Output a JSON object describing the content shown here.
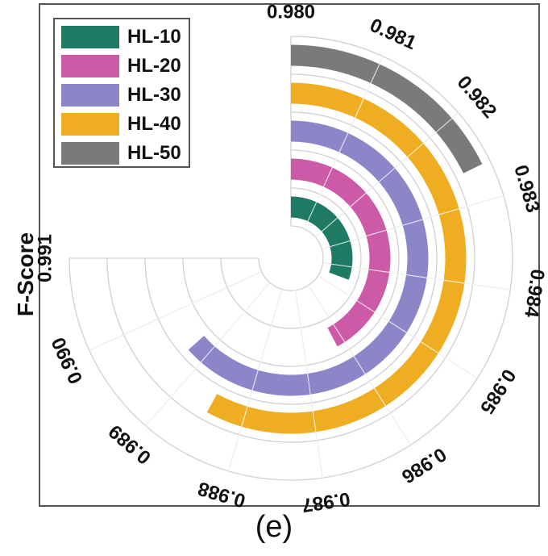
{
  "chart_data": {
    "type": "radial-bar",
    "title": "",
    "ylabel": "F-Score",
    "caption": "(e)",
    "axis_range": [
      0.98,
      0.991
    ],
    "tick_labels": [
      "0.980",
      "0.981",
      "0.982",
      "0.983",
      "0.984",
      "0.985",
      "0.986",
      "0.987",
      "0.988",
      "0.989",
      "0.990",
      "0.991"
    ],
    "legend_position": "top-left",
    "categories": [
      "HL-10",
      "HL-20",
      "HL-30",
      "HL-40",
      "HL-50"
    ],
    "series": [
      {
        "name": "HL-10",
        "value": 0.9845,
        "color": "#1f7a63"
      },
      {
        "name": "HL-20",
        "value": 0.9862,
        "color": "#cc5aa6"
      },
      {
        "name": "HL-30",
        "value": 0.9893,
        "color": "#8a86c7"
      },
      {
        "name": "HL-40",
        "value": 0.9885,
        "color": "#efae22"
      },
      {
        "name": "HL-50",
        "value": 0.9826,
        "color": "#7a7a7a"
      }
    ]
  }
}
